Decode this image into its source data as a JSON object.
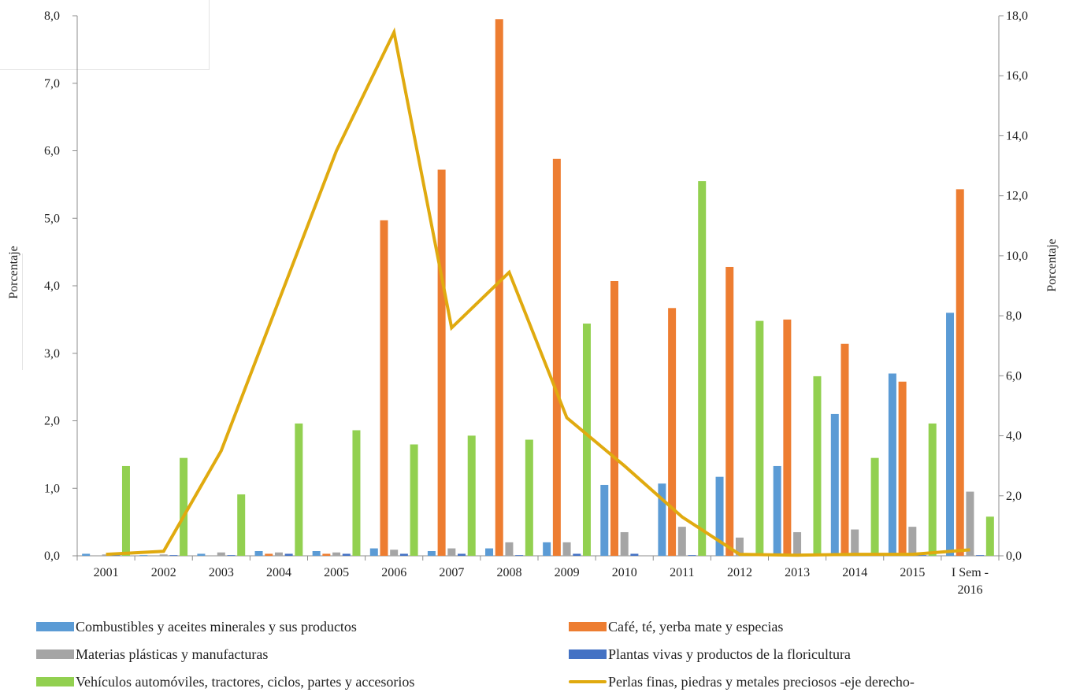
{
  "chart_data": {
    "type": "bar",
    "categories": [
      "2001",
      "2002",
      "2003",
      "2004",
      "2005",
      "2006",
      "2007",
      "2008",
      "2009",
      "2010",
      "2011",
      "2012",
      "2013",
      "2014",
      "2015",
      "I Sem - 2016"
    ],
    "ylabel": "Porcentaje",
    "y2label": "Porcentaje",
    "ylim": [
      0,
      8
    ],
    "y2lim": [
      0,
      18
    ],
    "yticks": [
      "0,0",
      "1,0",
      "2,0",
      "3,0",
      "4,0",
      "5,0",
      "6,0",
      "7,0",
      "8,0"
    ],
    "y2ticks": [
      "0,0",
      "2,0",
      "4,0",
      "6,0",
      "8,0",
      "10,0",
      "12,0",
      "14,0",
      "16,0",
      "18,0"
    ],
    "grid": false,
    "legend_position": "bottom",
    "series": [
      {
        "name": "Combustibles y aceites minerales y sus productos",
        "kind": "bar",
        "color": "#5b9bd5",
        "values": [
          0.03,
          0.01,
          0.03,
          0.07,
          0.07,
          0.11,
          0.07,
          0.11,
          0.2,
          1.05,
          1.07,
          1.17,
          1.33,
          2.1,
          2.7,
          3.6
        ]
      },
      {
        "name": "Café, té, yerba mate y especias",
        "kind": "bar",
        "color": "#ed7d31",
        "values": [
          0.0,
          0.0,
          0.0,
          0.03,
          0.03,
          4.97,
          5.72,
          7.95,
          5.88,
          4.07,
          3.67,
          4.28,
          3.5,
          3.14,
          2.58,
          5.43
        ]
      },
      {
        "name": "Materias plásticas y manufacturas",
        "kind": "bar",
        "color": "#a5a5a5",
        "values": [
          0.02,
          0.02,
          0.05,
          0.05,
          0.05,
          0.09,
          0.11,
          0.2,
          0.2,
          0.35,
          0.43,
          0.27,
          0.35,
          0.39,
          0.43,
          0.95
        ]
      },
      {
        "name": "Plantas vivas y productos de la floricultura",
        "kind": "bar",
        "color": "#4472c4",
        "values": [
          0.01,
          0.01,
          0.01,
          0.03,
          0.03,
          0.03,
          0.03,
          0.01,
          0.03,
          0.03,
          0.01,
          0.01,
          0.01,
          0.01,
          0.01,
          0.01
        ]
      },
      {
        "name": "Vehículos automóviles, tractores, ciclos, partes y accesorios",
        "kind": "bar",
        "color": "#92d050",
        "values": [
          1.33,
          1.45,
          0.91,
          1.96,
          1.86,
          1.65,
          1.78,
          1.72,
          3.44,
          0.0,
          5.55,
          3.48,
          2.66,
          1.45,
          1.96,
          0.58
        ]
      },
      {
        "name": "Perlas finas, piedras y metales preciosos -eje derecho-",
        "kind": "line",
        "axis": "right",
        "color": "#e0aa0f",
        "values": [
          0.05,
          0.15,
          3.5,
          8.5,
          13.5,
          17.45,
          7.6,
          9.45,
          4.6,
          3.0,
          1.3,
          0.05,
          0.02,
          0.05,
          0.05,
          0.2
        ]
      }
    ]
  }
}
